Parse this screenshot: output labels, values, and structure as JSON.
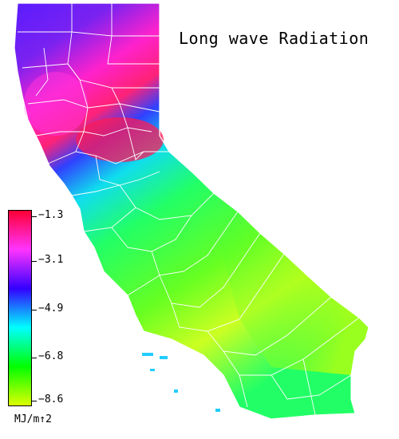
{
  "title": "Long wave Radiation",
  "legend": {
    "ticks": [
      "−1.3",
      "−3.1",
      "−4.9",
      "−6.8",
      "−8.6"
    ],
    "colors": [
      "#ff0033",
      "#ff33ff",
      "#3300ff",
      "#00ffff",
      "#00ff00",
      "#ddff00"
    ],
    "unit": "MJ/m↑2"
  },
  "map": {
    "region": "California",
    "border_color": "#ffffff"
  }
}
